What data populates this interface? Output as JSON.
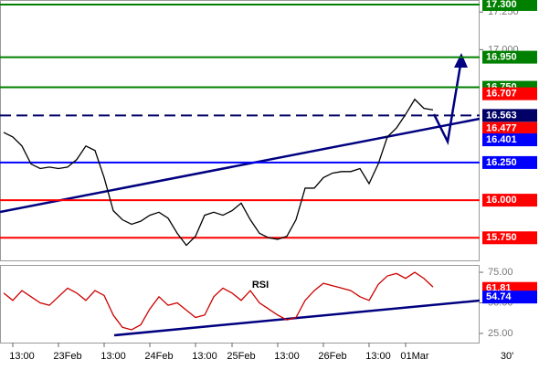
{
  "chart_data": [
    {
      "type": "line",
      "color": "#000000",
      "ylim": [
        15.6,
        17.33
      ],
      "yticks": [
        {
          "value": 17.25,
          "label": "17.250"
        },
        {
          "value": 17.0,
          "label": "17.000"
        }
      ],
      "levels": [
        {
          "value": 17.3,
          "label": "17.300",
          "color": "#008000",
          "style": "solid"
        },
        {
          "value": 16.95,
          "label": "16.950",
          "color": "#008000",
          "style": "solid"
        },
        {
          "value": 16.75,
          "label": "16.750",
          "color": "#008000",
          "style": "solid"
        },
        {
          "value": 16.563,
          "label": "16.563",
          "color": "#000066",
          "style": "dashed"
        },
        {
          "value": 16.25,
          "label": "16.250",
          "color": "#0000ff",
          "style": "solid"
        },
        {
          "value": 16.0,
          "label": "16.000",
          "color": "#ff0000",
          "style": "solid"
        },
        {
          "value": 15.75,
          "label": "15.750",
          "color": "#ff0000",
          "style": "solid"
        }
      ],
      "markers": [
        {
          "value": 16.707,
          "label": "16.707",
          "color": "#ff0000"
        },
        {
          "value": 16.477,
          "label": "16.477",
          "color": "#ff0000"
        },
        {
          "value": 16.401,
          "label": "16.401",
          "color": "#0000ff"
        }
      ],
      "categories": [
        null,
        "13:00",
        null,
        null,
        null,
        null,
        "23Feb",
        null,
        null,
        null,
        null,
        "13:00",
        null,
        null,
        null,
        null,
        "24Feb",
        null,
        null,
        null,
        null,
        "13:00",
        null,
        null,
        null,
        "25Feb",
        null,
        null,
        null,
        null,
        "13:00",
        null,
        null,
        null,
        null,
        "26Feb",
        null,
        null,
        null,
        null,
        "13:00",
        null,
        null,
        null,
        "01Mar",
        null,
        null,
        null
      ],
      "values": [
        16.45,
        16.42,
        16.36,
        16.24,
        16.21,
        16.22,
        16.21,
        16.22,
        16.27,
        16.36,
        16.33,
        16.15,
        15.93,
        15.87,
        15.84,
        15.86,
        15.9,
        15.92,
        15.88,
        15.78,
        15.7,
        15.76,
        15.9,
        15.92,
        15.9,
        15.93,
        15.98,
        15.87,
        15.78,
        15.75,
        15.74,
        15.76,
        15.87,
        16.08,
        16.08,
        16.15,
        16.18,
        16.19,
        16.19,
        16.21,
        16.11,
        16.24,
        16.42,
        16.48,
        16.57,
        16.67,
        16.61,
        16.6
      ],
      "timeframe": "30'"
    },
    {
      "type": "line",
      "title": "RSI",
      "color": "#cc0000",
      "ylim": [
        17.5,
        81
      ],
      "yticks": [
        {
          "value": 75,
          "label": "75.00"
        },
        {
          "value": 50,
          "label": "50.00"
        },
        {
          "value": 25,
          "label": "25.00"
        }
      ],
      "markers": [
        {
          "value": 61.81,
          "color": "#ff0000"
        },
        {
          "value": 54.74,
          "color": "#0000ff"
        }
      ],
      "values": [
        58,
        52,
        60,
        55,
        50,
        48,
        55,
        62,
        58,
        52,
        60,
        56,
        40,
        30,
        28,
        32,
        45,
        55,
        48,
        50,
        44,
        38,
        40,
        55,
        62,
        58,
        52,
        60,
        50,
        45,
        40,
        36,
        38,
        52,
        60,
        66,
        64,
        62,
        60,
        55,
        52,
        65,
        72,
        74,
        70,
        75,
        70,
        63
      ]
    }
  ]
}
